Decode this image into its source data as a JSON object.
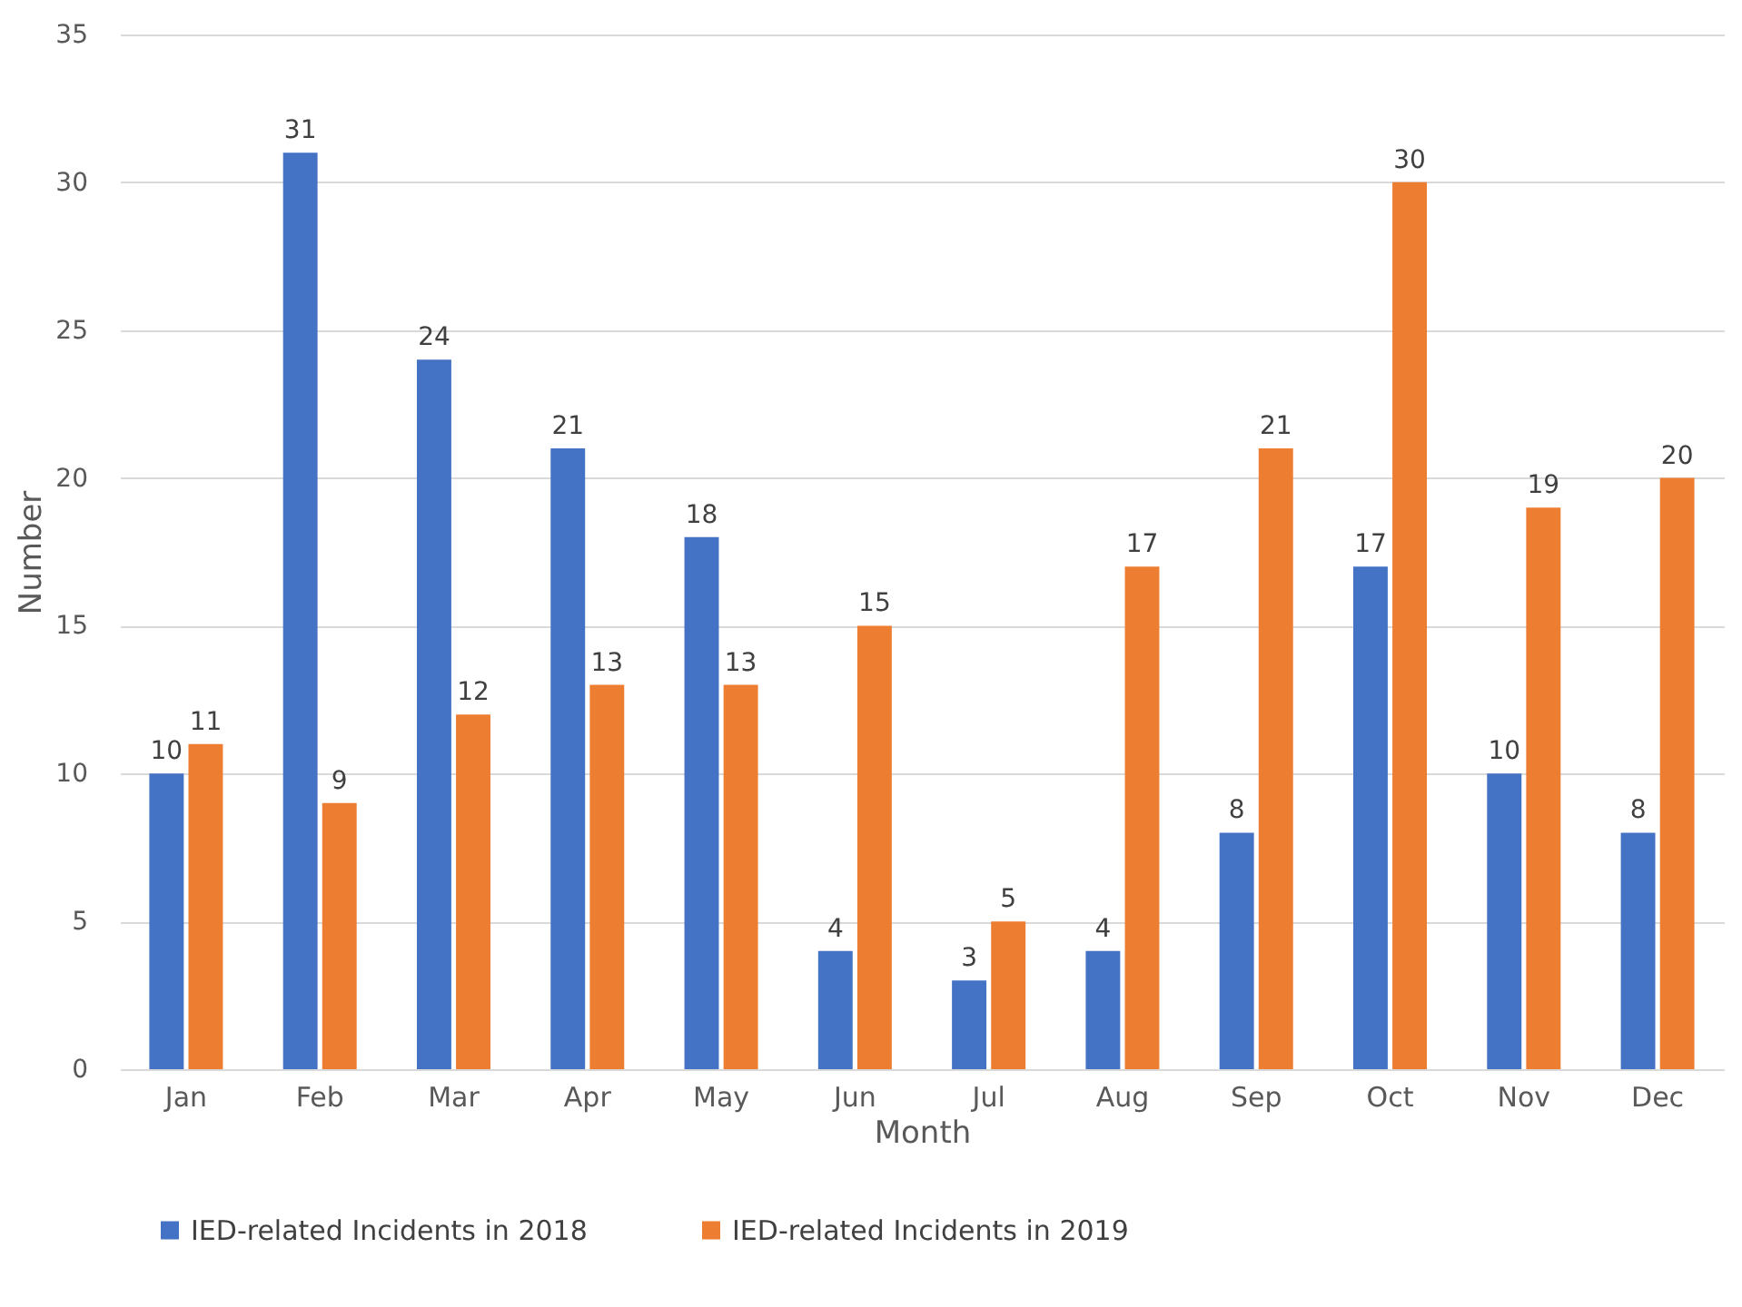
{
  "chart_data": {
    "type": "bar",
    "xlabel": "Month",
    "ylabel": "Number",
    "categories": [
      "Jan",
      "Feb",
      "Mar",
      "Apr",
      "May",
      "Jun",
      "Jul",
      "Aug",
      "Sep",
      "Oct",
      "Nov",
      "Dec"
    ],
    "series": [
      {
        "name": "IED-related Incidents in 2018",
        "color": "#4472c4",
        "values": [
          10,
          31,
          24,
          21,
          18,
          4,
          3,
          4,
          8,
          17,
          10,
          8
        ]
      },
      {
        "name": "IED-related Incidents in 2019",
        "color": "#ed7d31",
        "values": [
          11,
          9,
          12,
          13,
          13,
          15,
          5,
          17,
          21,
          30,
          19,
          20
        ]
      }
    ],
    "ylim": [
      0,
      35
    ],
    "yticks": [
      0,
      5,
      10,
      15,
      20,
      25,
      30,
      35
    ],
    "grid": "y",
    "legend": "bottom",
    "data_labels": true
  }
}
